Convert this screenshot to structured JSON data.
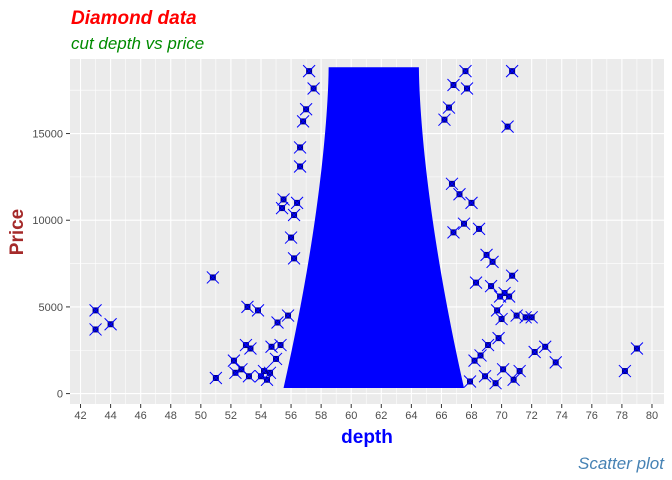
{
  "chart_data": {
    "type": "scatter",
    "title": "Diamond data",
    "subtitle": "cut depth vs price",
    "caption": "Scatter plot",
    "xlabel": "depth",
    "ylabel": "Price",
    "xlim": [
      41.3,
      80.8
    ],
    "ylim": [
      -600,
      19300
    ],
    "xticks": [
      42,
      44,
      46,
      48,
      50,
      52,
      54,
      56,
      58,
      60,
      62,
      64,
      66,
      68,
      70,
      72,
      74,
      76,
      78,
      80
    ],
    "yticks": [
      0,
      5000,
      10000,
      15000
    ],
    "ytick_labels": [
      "0",
      "5000",
      "10000",
      "15000"
    ],
    "grid": true,
    "colors": {
      "title": "#ff0000",
      "subtitle": "#008b00",
      "caption": "#4682b4",
      "xlabel": "#0000ff",
      "ylabel": "#a52a2a",
      "marker_fill": "#00008b",
      "marker_stroke": "#0000ff",
      "panel": "#ebebeb",
      "grid": "#ffffff"
    },
    "marker": "square-with-x",
    "dense_band": {
      "x_range": [
        55.5,
        67.5
      ],
      "y_range": [
        326,
        18823
      ],
      "core_x_range": [
        58.5,
        64.5
      ]
    },
    "points": [
      {
        "x": 43.0,
        "y": 3700
      },
      {
        "x": 43.0,
        "y": 4800
      },
      {
        "x": 44.0,
        "y": 4000
      },
      {
        "x": 50.8,
        "y": 6700
      },
      {
        "x": 51.0,
        "y": 900
      },
      {
        "x": 52.2,
        "y": 1900
      },
      {
        "x": 52.3,
        "y": 1200
      },
      {
        "x": 52.7,
        "y": 1400
      },
      {
        "x": 53.0,
        "y": 2800
      },
      {
        "x": 53.1,
        "y": 5000
      },
      {
        "x": 53.2,
        "y": 1000
      },
      {
        "x": 53.3,
        "y": 2600
      },
      {
        "x": 53.8,
        "y": 4800
      },
      {
        "x": 54.0,
        "y": 1000
      },
      {
        "x": 54.2,
        "y": 1300
      },
      {
        "x": 54.4,
        "y": 800
      },
      {
        "x": 54.6,
        "y": 1200
      },
      {
        "x": 54.7,
        "y": 2700
      },
      {
        "x": 55.0,
        "y": 2000
      },
      {
        "x": 55.1,
        "y": 4100
      },
      {
        "x": 55.3,
        "y": 2800
      },
      {
        "x": 55.4,
        "y": 10700
      },
      {
        "x": 55.5,
        "y": 11200
      },
      {
        "x": 55.8,
        "y": 4500
      },
      {
        "x": 56.0,
        "y": 9000
      },
      {
        "x": 56.2,
        "y": 7800
      },
      {
        "x": 56.4,
        "y": 11000
      },
      {
        "x": 56.6,
        "y": 14200
      },
      {
        "x": 56.8,
        "y": 15700
      },
      {
        "x": 57.0,
        "y": 16400
      },
      {
        "x": 57.2,
        "y": 18600
      },
      {
        "x": 57.5,
        "y": 17600
      },
      {
        "x": 56.6,
        "y": 13100
      },
      {
        "x": 56.2,
        "y": 10300
      },
      {
        "x": 66.2,
        "y": 15800
      },
      {
        "x": 66.5,
        "y": 16500
      },
      {
        "x": 66.8,
        "y": 17800
      },
      {
        "x": 67.6,
        "y": 18600
      },
      {
        "x": 67.7,
        "y": 17600
      },
      {
        "x": 66.7,
        "y": 12100
      },
      {
        "x": 67.2,
        "y": 11500
      },
      {
        "x": 67.5,
        "y": 9800
      },
      {
        "x": 68.0,
        "y": 11000
      },
      {
        "x": 68.5,
        "y": 9500
      },
      {
        "x": 69.0,
        "y": 8000
      },
      {
        "x": 69.4,
        "y": 7600
      },
      {
        "x": 68.3,
        "y": 6400
      },
      {
        "x": 69.3,
        "y": 6200
      },
      {
        "x": 69.9,
        "y": 5600
      },
      {
        "x": 70.2,
        "y": 5800
      },
      {
        "x": 70.5,
        "y": 5600
      },
      {
        "x": 70.7,
        "y": 6800
      },
      {
        "x": 69.7,
        "y": 4800
      },
      {
        "x": 70.0,
        "y": 4300
      },
      {
        "x": 71.0,
        "y": 4500
      },
      {
        "x": 71.6,
        "y": 4400
      },
      {
        "x": 72.0,
        "y": 4400
      },
      {
        "x": 71.2,
        "y": 1300
      },
      {
        "x": 70.8,
        "y": 800
      },
      {
        "x": 70.1,
        "y": 1400
      },
      {
        "x": 69.6,
        "y": 600
      },
      {
        "x": 72.2,
        "y": 2400
      },
      {
        "x": 72.9,
        "y": 2700
      },
      {
        "x": 73.6,
        "y": 1800
      },
      {
        "x": 69.8,
        "y": 3200
      },
      {
        "x": 69.1,
        "y": 2800
      },
      {
        "x": 68.6,
        "y": 2200
      },
      {
        "x": 68.2,
        "y": 1900
      },
      {
        "x": 68.9,
        "y": 1000
      },
      {
        "x": 67.9,
        "y": 700
      },
      {
        "x": 70.4,
        "y": 15400
      },
      {
        "x": 70.7,
        "y": 18600
      },
      {
        "x": 66.8,
        "y": 9300
      },
      {
        "x": 78.2,
        "y": 1300
      },
      {
        "x": 79.0,
        "y": 2600
      }
    ]
  }
}
